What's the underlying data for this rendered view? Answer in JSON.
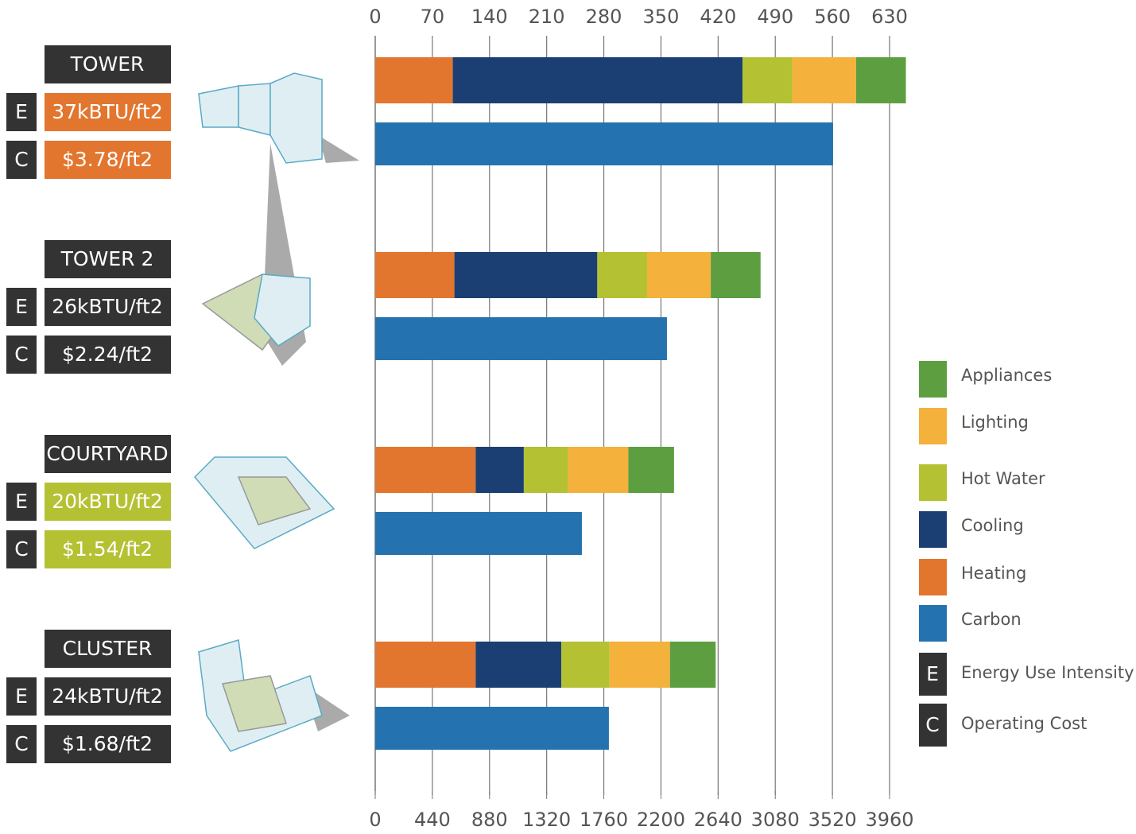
{
  "chart_data": {
    "type": "bar",
    "stacked": true,
    "categories": [
      "TOWER",
      "TOWER 2",
      "COURTYARD",
      "CLUSTER"
    ],
    "eui_labels": [
      "37kBTU/ft2",
      "26kBTU/ft2",
      "20kBTU/ft2",
      "24kBTU/ft2"
    ],
    "cost_labels": [
      "$3.78/ft2",
      "$2.24/ft2",
      "$1.54/ft2",
      "$1.68/ft2"
    ],
    "badge_colors": [
      "#e2762f",
      "#333333",
      "#b4c133",
      "#333333"
    ],
    "series": [
      {
        "name": "Heating",
        "color": "#e2762f",
        "values": [
          95,
          97,
          123,
          123
        ]
      },
      {
        "name": "Cooling",
        "color": "#1c3f73",
        "values": [
          355,
          175,
          59,
          105
        ]
      },
      {
        "name": "Hot Water",
        "color": "#b4c133",
        "values": [
          61,
          61,
          54,
          59
        ]
      },
      {
        "name": "Lighting",
        "color": "#f4b13b",
        "values": [
          78,
          78,
          74,
          74
        ]
      },
      {
        "name": "Appliances",
        "color": "#5d9f40",
        "values": [
          61,
          61,
          56,
          56
        ]
      },
      {
        "name": "Carbon",
        "color": "#2473b0",
        "axis": "x2",
        "values": [
          3525,
          2246,
          1591,
          1799
        ]
      }
    ],
    "xlim": [
      0,
      630
    ],
    "xticks": [
      0,
      70,
      140,
      210,
      280,
      350,
      420,
      490,
      560,
      630
    ],
    "x2lim": [
      0,
      3960
    ],
    "x2ticks": [
      0,
      440,
      880,
      1320,
      1760,
      2200,
      2640,
      3080,
      3520,
      3960
    ],
    "grid": true,
    "legend_order": [
      4,
      3,
      2,
      1,
      0,
      5
    ],
    "legend": [
      {
        "symbol": "E",
        "label": "Energy Use Intensity"
      },
      {
        "symbol": "C",
        "label": "Operating Cost"
      }
    ]
  }
}
